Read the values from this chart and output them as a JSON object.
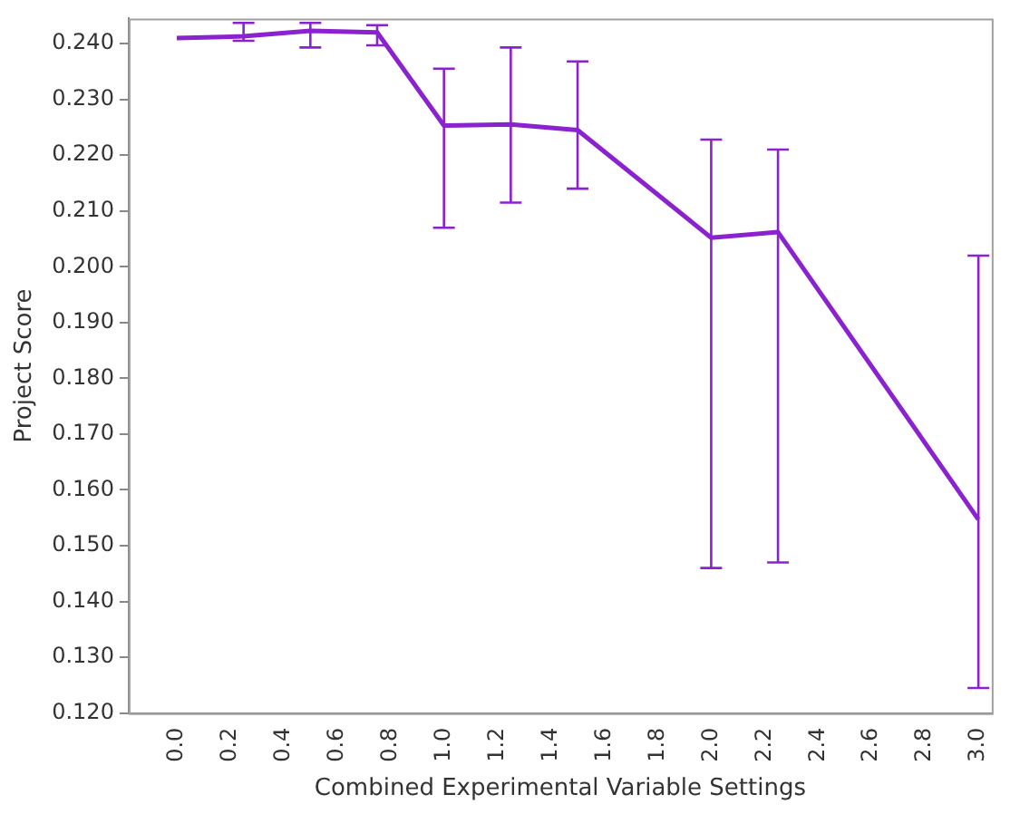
{
  "chart_data": {
    "type": "line",
    "xlabel": "Combined Experimental Variable Settings",
    "ylabel": "Project Score",
    "x": [
      0,
      0.25,
      0.5,
      0.75,
      1.0,
      1.25,
      1.5,
      2.0,
      2.25,
      3.0
    ],
    "series": [
      {
        "color": "#8b22d0",
        "values": [
          0.241,
          0.2413,
          0.2423,
          0.242,
          0.2253,
          0.2255,
          0.2245,
          0.2052,
          0.2062,
          0.1547
        ],
        "errors": [
          null,
          [
            0.2405,
            0.2437
          ],
          [
            0.2393,
            0.2437
          ],
          [
            0.2397,
            0.2433
          ],
          [
            0.207,
            0.2355
          ],
          [
            0.2115,
            0.2393
          ],
          [
            0.214,
            0.2368
          ],
          [
            0.146,
            0.2228
          ],
          [
            0.147,
            0.221
          ],
          [
            0.1245,
            0.202
          ]
        ]
      }
    ],
    "xlim": [
      -0.18,
      3.05
    ],
    "xticks": [
      {
        "value": 0,
        "label": "0.0"
      },
      {
        "value": 0.2,
        "label": "0.2"
      },
      {
        "value": 0.4,
        "label": "0.4"
      },
      {
        "value": 0.6,
        "label": "0.6"
      },
      {
        "value": 0.8,
        "label": "0.8"
      },
      {
        "value": 1,
        "label": "1.0"
      },
      {
        "value": 1.2,
        "label": "1.2"
      },
      {
        "value": 1.4,
        "label": "1.4"
      },
      {
        "value": 1.6,
        "label": "1.6"
      },
      {
        "value": 1.8,
        "label": "1.8"
      },
      {
        "value": 2,
        "label": "2.0"
      },
      {
        "value": 2.2,
        "label": "2.2"
      },
      {
        "value": 2.4,
        "label": "2.4"
      },
      {
        "value": 2.6,
        "label": "2.6"
      },
      {
        "value": 2.8,
        "label": "2.8"
      },
      {
        "value": 3,
        "label": "3.0"
      }
    ],
    "ylim": [
      0.12,
      0.2445
    ],
    "yticks": [
      {
        "value": 0.12,
        "label": "0.120"
      },
      {
        "value": 0.13,
        "label": "0.130"
      },
      {
        "value": 0.14,
        "label": "0.140"
      },
      {
        "value": 0.15,
        "label": "0.150"
      },
      {
        "value": 0.16,
        "label": "0.160"
      },
      {
        "value": 0.17,
        "label": "0.170"
      },
      {
        "value": 0.18,
        "label": "0.180"
      },
      {
        "value": 0.19,
        "label": "0.190"
      },
      {
        "value": 0.2,
        "label": "0.200"
      },
      {
        "value": 0.21,
        "label": "0.210"
      },
      {
        "value": 0.22,
        "label": "0.220"
      },
      {
        "value": 0.23,
        "label": "0.230"
      },
      {
        "value": 0.24,
        "label": "0.240"
      }
    ],
    "grid": false,
    "legend": false,
    "marker": "none",
    "line_style": "solid"
  }
}
